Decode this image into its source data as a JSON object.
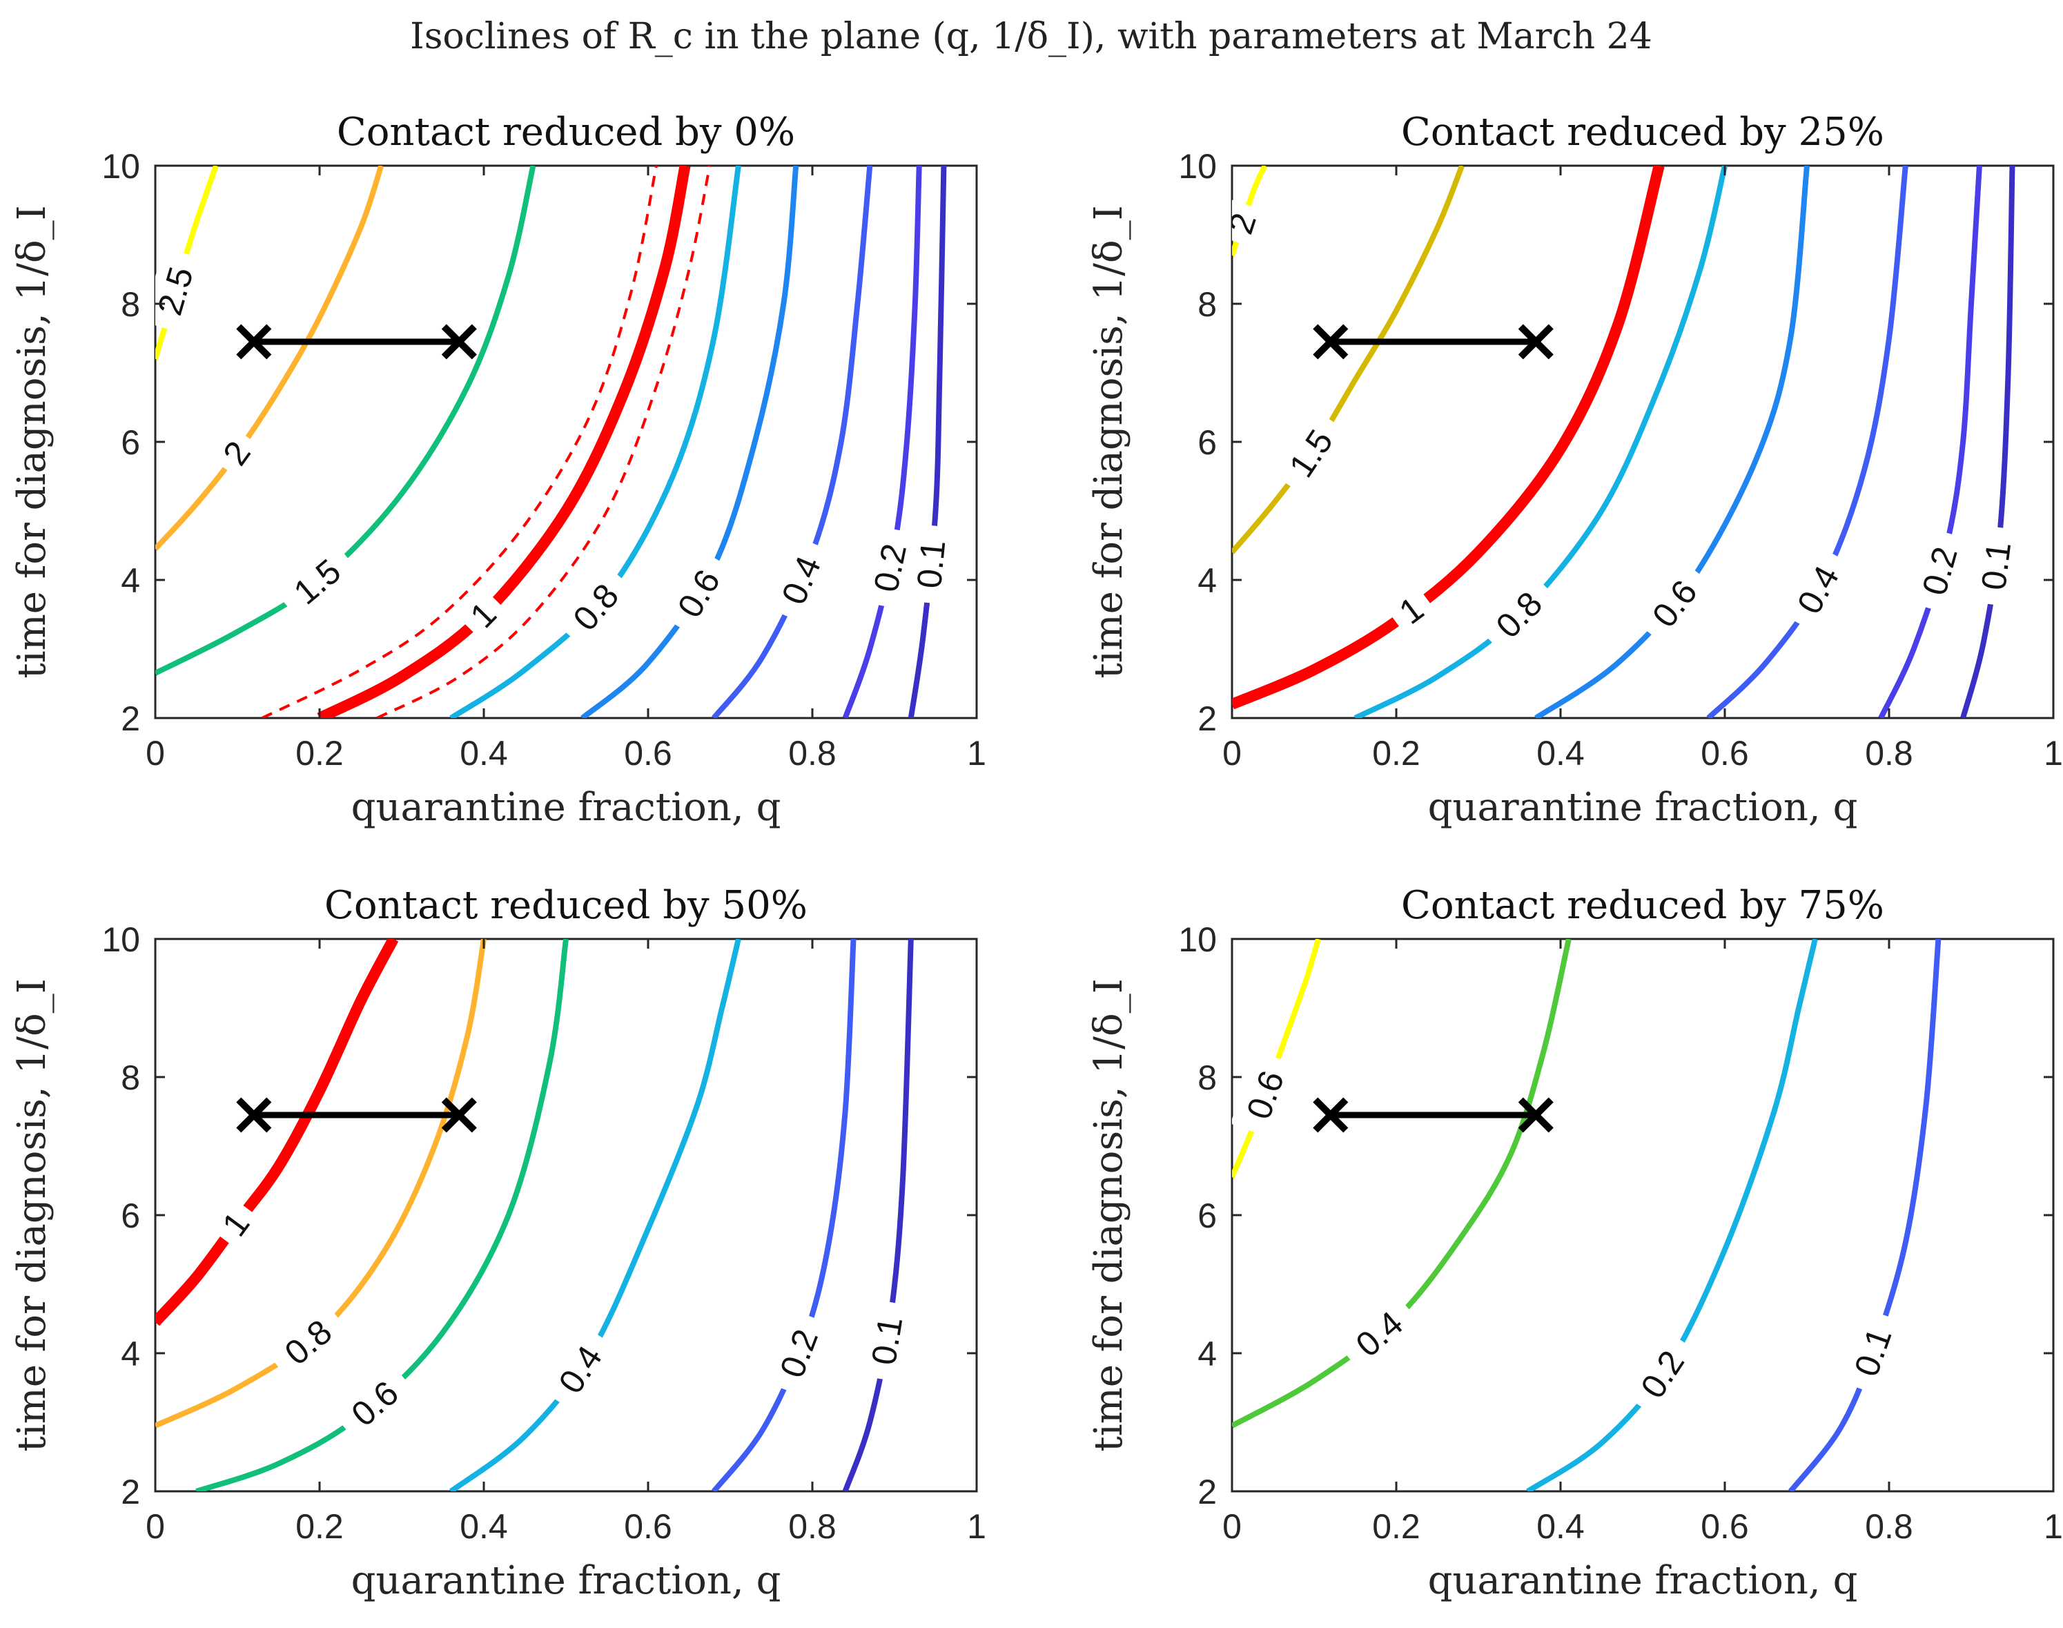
{
  "figure": {
    "title": "Isoclines of R_c in the plane (q, 1/δ_I), with parameters at March 24"
  },
  "chart_data": [
    {
      "type": "line",
      "title": "Contact reduced by 0%",
      "xlabel": "quarantine fraction, q",
      "ylabel": "time for diagnosis, 1/δ_I",
      "xlim": [
        0,
        1
      ],
      "ylim": [
        2,
        10
      ],
      "xticks": [
        "0",
        "0.2",
        "0.4",
        "0.6",
        "0.8",
        "1"
      ],
      "yticks": [
        "2",
        "4",
        "6",
        "8",
        "10"
      ],
      "marker_segment": {
        "x": [
          0.12,
          0.37
        ],
        "y": [
          7.45,
          7.45
        ]
      },
      "series": [
        {
          "label": "2.5",
          "color": "#ffff00",
          "points": [
            [
              0.0,
              7.2
            ],
            [
              0.02,
              8.0
            ],
            [
              0.045,
              9.0
            ],
            [
              0.068,
              9.8
            ],
            [
              0.074,
              10.0
            ]
          ]
        },
        {
          "label": "2",
          "color": "#ffb22e",
          "points": [
            [
              0.0,
              4.45
            ],
            [
              0.05,
              5.1
            ],
            [
              0.1,
              5.85
            ],
            [
              0.15,
              6.75
            ],
            [
              0.2,
              7.8
            ],
            [
              0.25,
              9.1
            ],
            [
              0.275,
              10.0
            ]
          ]
        },
        {
          "label": "1.5",
          "color": "#10c07a",
          "points": [
            [
              0.0,
              2.65
            ],
            [
              0.1,
              3.25
            ],
            [
              0.2,
              4.0
            ],
            [
              0.3,
              5.25
            ],
            [
              0.38,
              6.8
            ],
            [
              0.43,
              8.4
            ],
            [
              0.46,
              10.0
            ]
          ]
        },
        {
          "label": "1",
          "color": "#ff0000",
          "points": [
            [
              0.2,
              2.0
            ],
            [
              0.3,
              2.6
            ],
            [
              0.4,
              3.5
            ],
            [
              0.5,
              5.0
            ],
            [
              0.57,
              6.7
            ],
            [
              0.62,
              8.5
            ],
            [
              0.645,
              10.0
            ]
          ]
        },
        {
          "label": "",
          "color": "#ff0000",
          "points": [
            [
              0.13,
              2.0
            ],
            [
              0.25,
              2.7
            ],
            [
              0.35,
              3.5
            ],
            [
              0.45,
              4.8
            ],
            [
              0.53,
              6.4
            ],
            [
              0.58,
              8.2
            ],
            [
              0.61,
              10.0
            ]
          ]
        },
        {
          "label": "",
          "color": "#ff0000",
          "points": [
            [
              0.27,
              2.0
            ],
            [
              0.37,
              2.6
            ],
            [
              0.46,
              3.5
            ],
            [
              0.55,
              5.0
            ],
            [
              0.61,
              6.8
            ],
            [
              0.65,
              8.5
            ],
            [
              0.675,
              10.0
            ]
          ]
        },
        {
          "label": "0.8",
          "color": "#14b2e3",
          "points": [
            [
              0.36,
              2.0
            ],
            [
              0.45,
              2.7
            ],
            [
              0.55,
              3.8
            ],
            [
              0.63,
              5.5
            ],
            [
              0.68,
              7.5
            ],
            [
              0.71,
              10.0
            ]
          ]
        },
        {
          "label": "0.6",
          "color": "#1f85f0",
          "points": [
            [
              0.52,
              2.0
            ],
            [
              0.6,
              2.8
            ],
            [
              0.68,
              4.2
            ],
            [
              0.73,
              6.0
            ],
            [
              0.765,
              8.0
            ],
            [
              0.78,
              10.0
            ]
          ]
        },
        {
          "label": "0.4",
          "color": "#3f5cf5",
          "points": [
            [
              0.68,
              2.0
            ],
            [
              0.74,
              2.9
            ],
            [
              0.8,
              4.4
            ],
            [
              0.835,
              6.0
            ],
            [
              0.855,
              8.0
            ],
            [
              0.87,
              10.0
            ]
          ]
        },
        {
          "label": "0.2",
          "color": "#4a3ee8",
          "points": [
            [
              0.84,
              2.0
            ],
            [
              0.87,
              3.0
            ],
            [
              0.9,
              4.5
            ],
            [
              0.915,
              6.0
            ],
            [
              0.925,
              8.0
            ],
            [
              0.93,
              10.0
            ]
          ]
        },
        {
          "label": "0.1",
          "color": "#3a2fc5",
          "points": [
            [
              0.92,
              2.0
            ],
            [
              0.935,
              3.2
            ],
            [
              0.95,
              5.0
            ],
            [
              0.955,
              7.0
            ],
            [
              0.96,
              10.0
            ]
          ]
        }
      ]
    },
    {
      "type": "line",
      "title": "Contact reduced by 25%",
      "xlabel": "quarantine fraction, q",
      "ylabel": "time for diagnosis, 1/δ_I",
      "xlim": [
        0,
        1
      ],
      "ylim": [
        2,
        10
      ],
      "xticks": [
        "0",
        "0.2",
        "0.4",
        "0.6",
        "0.8",
        "1"
      ],
      "yticks": [
        "2",
        "4",
        "6",
        "8",
        "10"
      ],
      "marker_segment": {
        "x": [
          0.12,
          0.37
        ],
        "y": [
          7.45,
          7.45
        ]
      },
      "series": [
        {
          "label": "2",
          "color": "#ffff00",
          "points": [
            [
              0.0,
              8.7
            ],
            [
              0.025,
              9.6
            ],
            [
              0.04,
              10.0
            ]
          ]
        },
        {
          "label": "1.5",
          "color": "#d4b900",
          "points": [
            [
              0.0,
              4.4
            ],
            [
              0.05,
              5.1
            ],
            [
              0.1,
              5.9
            ],
            [
              0.15,
              6.9
            ],
            [
              0.2,
              7.9
            ],
            [
              0.25,
              9.1
            ],
            [
              0.28,
              10.0
            ]
          ]
        },
        {
          "label": "1",
          "color": "#ff0000",
          "points": [
            [
              0.0,
              2.2
            ],
            [
              0.1,
              2.7
            ],
            [
              0.2,
              3.4
            ],
            [
              0.3,
              4.4
            ],
            [
              0.4,
              5.9
            ],
            [
              0.47,
              7.7
            ],
            [
              0.52,
              10.0
            ]
          ]
        },
        {
          "label": "0.8",
          "color": "#14b2e3",
          "points": [
            [
              0.15,
              2.0
            ],
            [
              0.25,
              2.6
            ],
            [
              0.35,
              3.5
            ],
            [
              0.45,
              5.0
            ],
            [
              0.52,
              6.8
            ],
            [
              0.57,
              8.5
            ],
            [
              0.6,
              10.0
            ]
          ]
        },
        {
          "label": "0.6",
          "color": "#1f85f0",
          "points": [
            [
              0.37,
              2.0
            ],
            [
              0.47,
              2.8
            ],
            [
              0.56,
              4.0
            ],
            [
              0.64,
              5.8
            ],
            [
              0.68,
              7.5
            ],
            [
              0.7,
              10.0
            ]
          ]
        },
        {
          "label": "0.4",
          "color": "#3f5cf5",
          "points": [
            [
              0.58,
              2.0
            ],
            [
              0.65,
              2.8
            ],
            [
              0.72,
              4.0
            ],
            [
              0.77,
              5.6
            ],
            [
              0.8,
              7.5
            ],
            [
              0.82,
              10.0
            ]
          ]
        },
        {
          "label": "0.2",
          "color": "#4a3ee8",
          "points": [
            [
              0.79,
              2.0
            ],
            [
              0.83,
              3.0
            ],
            [
              0.87,
              4.5
            ],
            [
              0.89,
              6.0
            ],
            [
              0.9,
              8.0
            ],
            [
              0.91,
              10.0
            ]
          ]
        },
        {
          "label": "0.1",
          "color": "#3a2fc5",
          "points": [
            [
              0.89,
              2.0
            ],
            [
              0.915,
              3.1
            ],
            [
              0.935,
              4.7
            ],
            [
              0.945,
              7.0
            ],
            [
              0.95,
              10.0
            ]
          ]
        }
      ]
    },
    {
      "type": "line",
      "title": "Contact reduced by 50%",
      "xlabel": "quarantine fraction, q",
      "ylabel": "time for diagnosis, 1/δ_I",
      "xlim": [
        0,
        1
      ],
      "ylim": [
        2,
        10
      ],
      "xticks": [
        "0",
        "0.2",
        "0.4",
        "0.6",
        "0.8",
        "1"
      ],
      "yticks": [
        "2",
        "4",
        "6",
        "8",
        "10"
      ],
      "marker_segment": {
        "x": [
          0.12,
          0.37
        ],
        "y": [
          7.45,
          7.45
        ]
      },
      "series": [
        {
          "label": "1",
          "color": "#ff0000",
          "points": [
            [
              0.0,
              4.45
            ],
            [
              0.05,
              5.1
            ],
            [
              0.1,
              5.9
            ],
            [
              0.15,
              6.7
            ],
            [
              0.2,
              7.8
            ],
            [
              0.25,
              9.1
            ],
            [
              0.29,
              10.0
            ]
          ]
        },
        {
          "label": "0.8",
          "color": "#ffb22e",
          "points": [
            [
              0.0,
              2.95
            ],
            [
              0.1,
              3.5
            ],
            [
              0.2,
              4.3
            ],
            [
              0.28,
              5.5
            ],
            [
              0.34,
              7.0
            ],
            [
              0.38,
              8.6
            ],
            [
              0.4,
              10.0
            ]
          ]
        },
        {
          "label": "0.6",
          "color": "#10c07a",
          "points": [
            [
              0.05,
              2.0
            ],
            [
              0.15,
              2.4
            ],
            [
              0.25,
              3.1
            ],
            [
              0.35,
              4.3
            ],
            [
              0.43,
              6.0
            ],
            [
              0.48,
              8.2
            ],
            [
              0.5,
              10.0
            ]
          ]
        },
        {
          "label": "0.4",
          "color": "#14b2e3",
          "points": [
            [
              0.36,
              2.0
            ],
            [
              0.45,
              2.8
            ],
            [
              0.53,
              4.0
            ],
            [
              0.6,
              5.8
            ],
            [
              0.66,
              7.6
            ],
            [
              0.69,
              9.0
            ],
            [
              0.71,
              10.0
            ]
          ]
        },
        {
          "label": "0.2",
          "color": "#3f5cf5",
          "points": [
            [
              0.68,
              2.0
            ],
            [
              0.74,
              2.9
            ],
            [
              0.79,
              4.2
            ],
            [
              0.82,
              5.6
            ],
            [
              0.84,
              7.5
            ],
            [
              0.85,
              10.0
            ]
          ]
        },
        {
          "label": "0.1",
          "color": "#3a2fc5",
          "points": [
            [
              0.84,
              2.0
            ],
            [
              0.87,
              3.0
            ],
            [
              0.895,
              4.5
            ],
            [
              0.91,
              6.5
            ],
            [
              0.92,
              10.0
            ]
          ]
        }
      ]
    },
    {
      "type": "line",
      "title": "Contact reduced by 75%",
      "xlabel": "quarantine fraction, q",
      "ylabel": "time for diagnosis, 1/δ_I",
      "xlim": [
        0,
        1
      ],
      "ylim": [
        2,
        10
      ],
      "xticks": [
        "0",
        "0.2",
        "0.4",
        "0.6",
        "0.8",
        "1"
      ],
      "yticks": [
        "2",
        "4",
        "6",
        "8",
        "10"
      ],
      "marker_segment": {
        "x": [
          0.12,
          0.37
        ],
        "y": [
          7.45,
          7.45
        ]
      },
      "series": [
        {
          "label": "0.6",
          "color": "#ffff00",
          "points": [
            [
              0.0,
              6.55
            ],
            [
              0.03,
              7.4
            ],
            [
              0.06,
              8.4
            ],
            [
              0.09,
              9.4
            ],
            [
              0.105,
              10.0
            ]
          ]
        },
        {
          "label": "0.4",
          "color": "#4fc83a",
          "points": [
            [
              0.0,
              2.95
            ],
            [
              0.1,
              3.6
            ],
            [
              0.2,
              4.5
            ],
            [
              0.28,
              5.7
            ],
            [
              0.34,
              6.9
            ],
            [
              0.38,
              8.4
            ],
            [
              0.41,
              10.0
            ]
          ]
        },
        {
          "label": "0.2",
          "color": "#14b2e3",
          "points": [
            [
              0.36,
              2.0
            ],
            [
              0.45,
              2.7
            ],
            [
              0.53,
              3.8
            ],
            [
              0.6,
              5.5
            ],
            [
              0.66,
              7.5
            ],
            [
              0.69,
              9.0
            ],
            [
              0.71,
              10.0
            ]
          ]
        },
        {
          "label": "0.1",
          "color": "#3f5cf5",
          "points": [
            [
              0.68,
              2.0
            ],
            [
              0.74,
              2.9
            ],
            [
              0.78,
              4.0
            ],
            [
              0.82,
              5.6
            ],
            [
              0.845,
              7.6
            ],
            [
              0.86,
              10.0
            ]
          ]
        }
      ]
    }
  ]
}
